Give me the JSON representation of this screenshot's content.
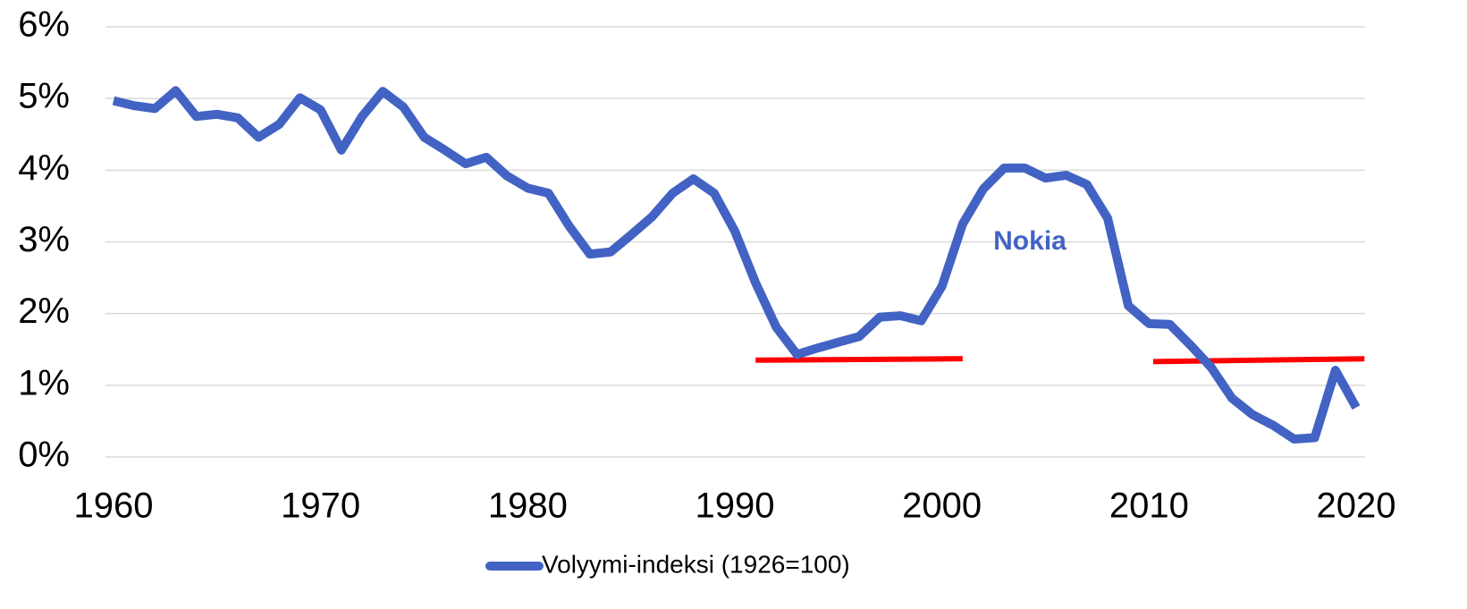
{
  "chart_data": {
    "type": "line",
    "annotations": [
      "Nokia"
    ],
    "x": [
      1960,
      1961,
      1962,
      1963,
      1964,
      1965,
      1966,
      1967,
      1968,
      1969,
      1970,
      1971,
      1972,
      1973,
      1974,
      1975,
      1976,
      1977,
      1978,
      1979,
      1980,
      1981,
      1982,
      1983,
      1984,
      1985,
      1986,
      1987,
      1988,
      1989,
      1990,
      1991,
      1992,
      1993,
      1994,
      1995,
      1996,
      1997,
      1998,
      1999,
      2000,
      2001,
      2002,
      2003,
      2004,
      2005,
      2006,
      2007,
      2008,
      2009,
      2010,
      2011,
      2012,
      2013,
      2014,
      2015,
      2016,
      2017,
      2018,
      2019,
      2020
    ],
    "series": [
      {
        "name": "Volyymi-indeksi (1926=100)",
        "color": "#4263c4",
        "values": [
          4.97,
          4.9,
          4.86,
          5.11,
          4.75,
          4.78,
          4.73,
          4.46,
          4.64,
          5.01,
          4.84,
          4.28,
          4.75,
          5.1,
          4.88,
          4.46,
          4.28,
          4.09,
          4.18,
          3.92,
          3.75,
          3.68,
          3.22,
          2.83,
          2.86,
          3.1,
          3.35,
          3.68,
          3.88,
          3.68,
          3.15,
          2.43,
          1.81,
          1.43,
          1.52,
          1.6,
          1.68,
          1.95,
          1.97,
          1.9,
          2.38,
          3.25,
          3.74,
          4.03,
          4.03,
          3.89,
          3.93,
          3.8,
          3.33,
          2.11,
          1.86,
          1.85,
          1.56,
          1.25,
          0.82,
          0.59,
          0.44,
          0.25,
          0.27,
          1.21,
          0.69
        ]
      }
    ],
    "trend_lines": [
      {
        "color": "#ff0000",
        "x": [
          1991,
          2001
        ],
        "values": [
          1.35,
          1.37
        ]
      },
      {
        "color": "#ff0000",
        "x": [
          2010.2,
          2020.4
        ],
        "values": [
          1.33,
          1.37
        ]
      }
    ],
    "xlim": [
      1960,
      2020
    ],
    "xticks": [
      1960,
      1970,
      1980,
      1990,
      2000,
      2010,
      2020
    ],
    "ylim": [
      0,
      6
    ],
    "yticks": [
      {
        "value": 0,
        "label": "0%"
      },
      {
        "value": 1,
        "label": "1%"
      },
      {
        "value": 2,
        "label": "2%"
      },
      {
        "value": 3,
        "label": "3%"
      },
      {
        "value": 4,
        "label": "4%"
      },
      {
        "value": 5,
        "label": "5%"
      },
      {
        "value": 6,
        "label": "6%"
      }
    ],
    "grid": true,
    "legend": "bottom"
  }
}
